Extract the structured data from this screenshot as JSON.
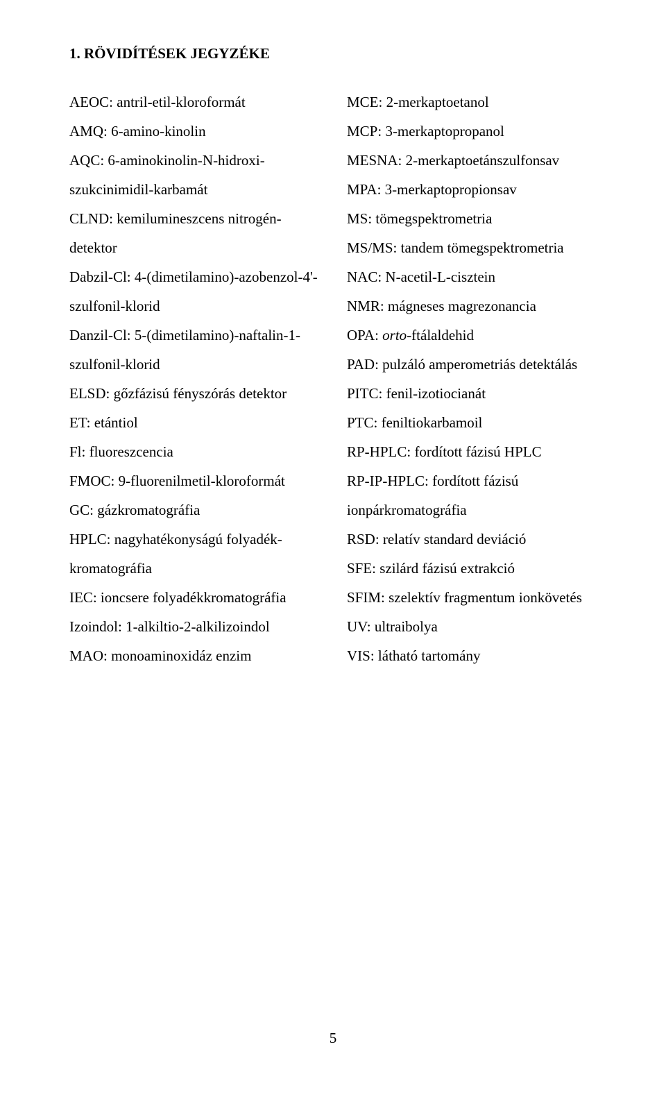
{
  "heading": "1.  RÖVIDÍTÉSEK JEGYZÉKE",
  "left": [
    "AEOC: antril-etil-kloroformát",
    "AMQ: 6-amino-kinolin",
    "AQC: 6-aminokinolin-N-hidroxi-szukcinimidil-karbamát",
    "CLND: kemilumineszcens nitrogén-detektor",
    "Dabzil-Cl: 4-(dimetilamino)-azobenzol-4'-szulfonil-klorid",
    "Danzil-Cl: 5-(dimetilamino)-naftalin-1-szulfonil-klorid",
    "ELSD: gőzfázisú fényszórás detektor",
    "ET: etántiol",
    "Fl: fluoreszcencia",
    "FMOC: 9-fluorenilmetil-kloroformát",
    "GC: gázkromatográfia",
    "HPLC: nagyhatékonyságú folyadék-kromatográfia",
    "IEC: ioncsere folyadékkromatográfia",
    "Izoindol: 1-alkiltio-2-alkilizoindol",
    "MAO: monoaminoxidáz enzim"
  ],
  "right": [
    "MCE: 2-merkaptoetanol",
    "MCP: 3-merkaptopropanol",
    "MESNA: 2-merkaptoetánszulfonsav",
    "MPA: 3-merkaptopropionsav",
    "MS: tömegspektrometria",
    "MS/MS: tandem tömegspektrometria",
    "NAC: N-acetil-L-cisztein",
    "NMR: mágneses magrezonancia",
    "PAD: pulzáló amperometriás detektálás",
    "PITC: fenil-izotiocianát",
    "PTC: feniltiokarbamoil",
    "RP-HPLC: fordított fázisú HPLC",
    "RP-IP-HPLC: fordított fázisú ionpárkromatográfia",
    "RSD: relatív standard deviáció",
    "SFE: szilárd fázisú extrakció",
    "SFIM: szelektív fragmentum ionkövetés",
    "UV: ultraibolya",
    "VIS: látható tartomány"
  ],
  "opa": {
    "abbr": "OPA: ",
    "italic": "orto",
    "rest": "-ftálaldehid"
  },
  "page_number": "5",
  "opa_insert_after_index": 7
}
